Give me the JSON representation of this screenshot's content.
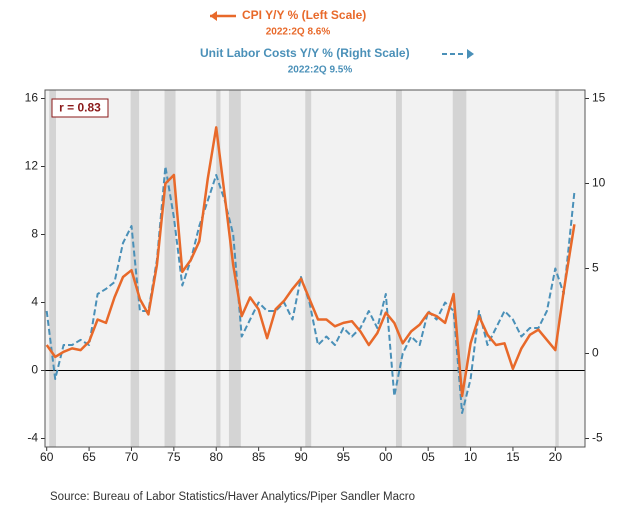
{
  "chart_data": {
    "type": "line",
    "series": [
      {
        "name": "CPI Y/Y % (Left Scale)",
        "latest": "2022:2Q 8.6%",
        "color": "#e8692a",
        "axis": "y",
        "values": [
          1.5,
          0.8,
          1.1,
          1.3,
          1.2,
          1.7,
          3.0,
          2.8,
          4.3,
          5.5,
          5.9,
          4.2,
          3.3,
          6.2,
          11.0,
          11.5,
          5.8,
          6.5,
          7.6,
          11.3,
          14.3,
          10.3,
          6.2,
          3.2,
          4.3,
          3.6,
          1.9,
          3.6,
          4.1,
          4.8,
          5.4,
          4.2,
          3.0,
          3.0,
          2.6,
          2.8,
          2.9,
          2.3,
          1.5,
          2.2,
          3.4,
          2.8,
          1.6,
          2.3,
          2.7,
          3.4,
          3.2,
          2.8,
          4.5,
          -1.5,
          1.6,
          3.2,
          2.1,
          1.5,
          1.6,
          0.1,
          1.3,
          2.1,
          2.4,
          1.8,
          1.2,
          4.7,
          8.6
        ]
      },
      {
        "name": "Unit Labor Costs Y/Y % (Right Scale)",
        "latest": "2022:2Q 9.5%",
        "color": "#4a90b8",
        "axis": "y2",
        "values": [
          2.5,
          -1.5,
          0.5,
          0.5,
          0.8,
          0.5,
          3.5,
          3.8,
          4.2,
          6.5,
          7.5,
          2.5,
          2.5,
          5.5,
          11.0,
          8.0,
          4.0,
          5.5,
          7.5,
          9.0,
          10.5,
          9.0,
          7.0,
          1.0,
          2.0,
          3.0,
          2.5,
          2.5,
          3.0,
          2.0,
          4.5,
          3.0,
          0.5,
          1.0,
          0.5,
          1.5,
          1.0,
          1.5,
          2.5,
          1.5,
          3.5,
          -2.5,
          0.0,
          1.0,
          0.5,
          2.5,
          2.0,
          3.0,
          2.5,
          -3.5,
          -1.5,
          2.5,
          0.5,
          1.5,
          2.5,
          2.0,
          1.0,
          1.5,
          1.5,
          2.5,
          5.0,
          3.5,
          9.5
        ]
      }
    ],
    "x": [
      1960,
      1961,
      1962,
      1963,
      1964,
      1965,
      1966,
      1967,
      1968,
      1969,
      1970,
      1971,
      1972,
      1973,
      1974,
      1975,
      1976,
      1977,
      1978,
      1979,
      1980,
      1981,
      1982,
      1983,
      1984,
      1985,
      1986,
      1987,
      1988,
      1989,
      1990,
      1991,
      1992,
      1993,
      1994,
      1995,
      1996,
      1997,
      1998,
      1999,
      2000,
      2001,
      2002,
      2003,
      2004,
      2005,
      2006,
      2007,
      2008,
      2009,
      2010,
      2011,
      2012,
      2013,
      2014,
      2015,
      2016,
      2017,
      2018,
      2019,
      2020,
      2021,
      2022.25
    ],
    "xlim": [
      1959.8,
      2023.5
    ],
    "xticks": [
      {
        "value": 1960,
        "label": "60"
      },
      {
        "value": 1965,
        "label": "65"
      },
      {
        "value": 1970,
        "label": "70"
      },
      {
        "value": 1975,
        "label": "75"
      },
      {
        "value": 1980,
        "label": "80"
      },
      {
        "value": 1985,
        "label": "85"
      },
      {
        "value": 1990,
        "label": "90"
      },
      {
        "value": 1995,
        "label": "95"
      },
      {
        "value": 2000,
        "label": "00"
      },
      {
        "value": 2005,
        "label": "05"
      },
      {
        "value": 2010,
        "label": "10"
      },
      {
        "value": 2015,
        "label": "15"
      },
      {
        "value": 2020,
        "label": "20"
      }
    ],
    "ylim": [
      -4.5,
      16.5
    ],
    "yticks": [
      -4,
      0,
      4,
      8,
      12,
      16
    ],
    "y2lim": [
      -5.5,
      15.5
    ],
    "y2ticks": [
      -5,
      0,
      5,
      10,
      15
    ],
    "recessions": [
      [
        1960.3,
        1961.1
      ],
      [
        1969.9,
        1970.9
      ],
      [
        1973.9,
        1975.2
      ],
      [
        1980.0,
        1980.5
      ],
      [
        1981.5,
        1982.9
      ],
      [
        1990.5,
        1991.2
      ],
      [
        2001.2,
        2001.9
      ],
      [
        2007.9,
        2009.5
      ],
      [
        2020.0,
        2020.4
      ]
    ],
    "annotation": "r = 0.83",
    "source": "Source:  Bureau of Labor Statistics/Haver Analytics/Piper Sandler Macro"
  }
}
